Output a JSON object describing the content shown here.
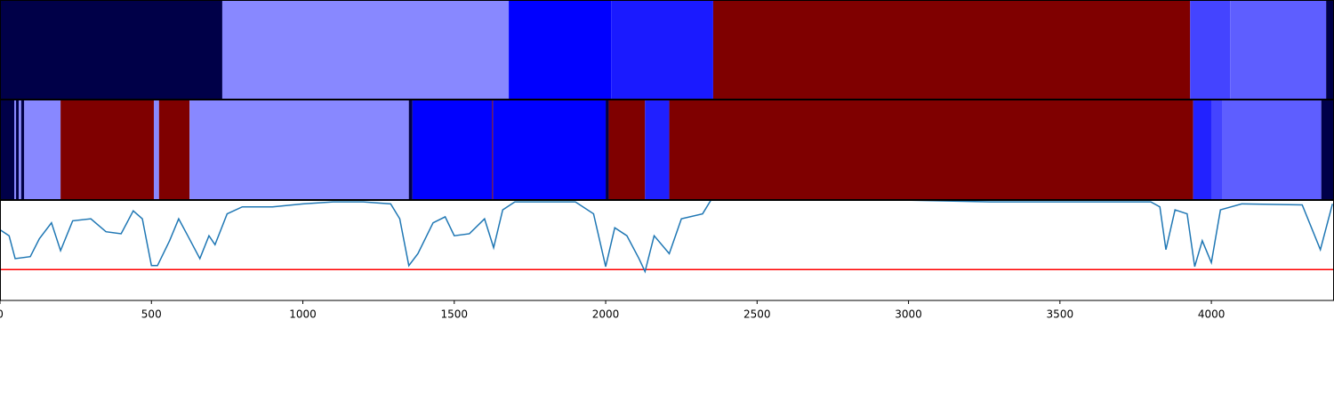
{
  "chart_data": [
    {
      "type": "segments",
      "xlim": [
        0,
        4405
      ],
      "starts": [
        0,
        734,
        1680,
        2018,
        2355,
        3930,
        4062,
        4379
      ],
      "ends": [
        734,
        1680,
        2018,
        2355,
        3930,
        4062,
        4379,
        4405
      ],
      "colors": [
        "#000048",
        "#8888ff",
        "#0000ff",
        "#1a1aff",
        "#7f0000",
        "#4444ff",
        "#5e5eff",
        "#000048"
      ]
    },
    {
      "type": "segments",
      "xlim": [
        0,
        4405
      ],
      "starts": [
        0,
        47,
        53,
        62,
        70,
        80,
        200,
        508,
        525,
        626,
        1350,
        1362,
        1625,
        1628,
        2000,
        2010,
        2130,
        2210,
        3940,
        4002,
        4035,
        4363
      ],
      "ends": [
        47,
        53,
        62,
        70,
        80,
        200,
        508,
        525,
        626,
        1350,
        1362,
        1625,
        1628,
        2000,
        2010,
        2130,
        2210,
        3940,
        4002,
        4035,
        4363,
        4405
      ],
      "colors": [
        "#000048",
        "#8888ff",
        "#000048",
        "#8888ff",
        "#000048",
        "#8888ff",
        "#7f0000",
        "#8888ff",
        "#7f0000",
        "#8888ff",
        "#000048",
        "#0000ff",
        "#7f0000",
        "#0000ff",
        "#000048",
        "#7f0000",
        "#2020ff",
        "#7f0000",
        "#2222ff",
        "#4444ff",
        "#5e5eff",
        "#000048"
      ]
    },
    {
      "type": "line",
      "xlim": [
        0,
        4405
      ],
      "ylim": [
        0,
        1
      ],
      "xticks": [
        0,
        500,
        1000,
        1500,
        2000,
        2500,
        3000,
        3500,
        4000
      ],
      "x": [
        0,
        30,
        50,
        100,
        130,
        170,
        200,
        240,
        300,
        350,
        400,
        440,
        470,
        500,
        520,
        560,
        590,
        620,
        660,
        690,
        710,
        750,
        800,
        900,
        1000,
        1100,
        1200,
        1290,
        1320,
        1350,
        1380,
        1430,
        1470,
        1500,
        1550,
        1600,
        1630,
        1660,
        1700,
        1900,
        1960,
        2000,
        2030,
        2070,
        2110,
        2130,
        2160,
        2210,
        2250,
        2320,
        2350,
        2800,
        3270,
        3800,
        3830,
        3850,
        3880,
        3920,
        3945,
        3970,
        4000,
        4030,
        4100,
        4300,
        4360,
        4400
      ],
      "values": [
        0.71,
        0.65,
        0.42,
        0.44,
        0.62,
        0.78,
        0.5,
        0.8,
        0.82,
        0.69,
        0.67,
        0.9,
        0.82,
        0.35,
        0.35,
        0.6,
        0.82,
        0.65,
        0.42,
        0.65,
        0.56,
        0.87,
        0.94,
        0.94,
        0.97,
        0.99,
        0.99,
        0.97,
        0.82,
        0.35,
        0.47,
        0.78,
        0.84,
        0.65,
        0.67,
        0.82,
        0.53,
        0.91,
        0.99,
        0.99,
        0.87,
        0.34,
        0.73,
        0.65,
        0.42,
        0.29,
        0.65,
        0.47,
        0.82,
        0.87,
        1.02,
        1.02,
        0.99,
        0.99,
        0.94,
        0.51,
        0.91,
        0.87,
        0.34,
        0.6,
        0.38,
        0.91,
        0.97,
        0.96,
        0.51,
        0.97
      ],
      "color": "#1f77b4",
      "hline": 0.31,
      "hline_color": "#ff0000"
    }
  ]
}
